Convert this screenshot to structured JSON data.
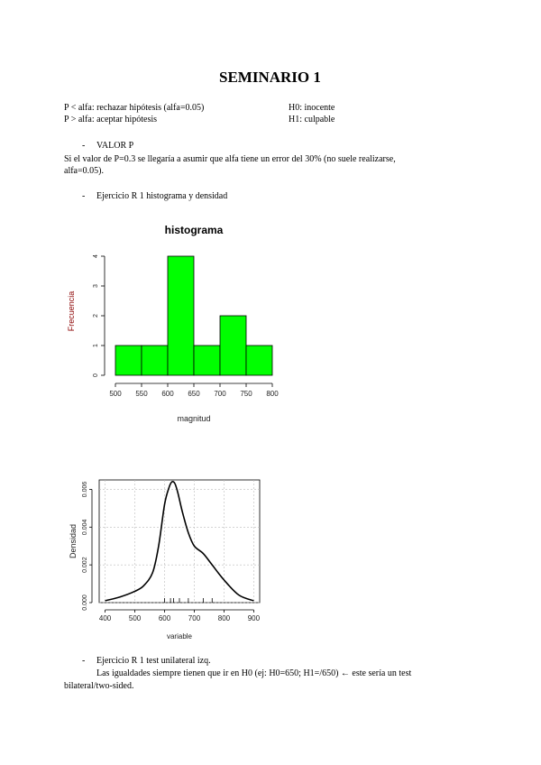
{
  "document": {
    "title": "SEMINARIO 1",
    "hyp_left_1": "P < alfa: rechazar hipótesis (alfa=0.05)",
    "hyp_right_1": "H0: inocente",
    "hyp_left_2": "P > alfa: aceptar hipótesis",
    "hyp_right_2": "H1: culpable",
    "bullet_1": "VALOR P",
    "para_1_a": "Si el valor de P=0.3 se llegaría a asumir que alfa tiene un error del 30% (no suele realizarse,",
    "para_1_b": "alfa=0.05).",
    "bullet_2": "Ejercicio R 1 histograma y densidad",
    "bullet_3": "Ejercicio R 1 test unilateral izq.",
    "para_2_a": "Las igualdades siempre tienen que ir en H0 (ej: H0=650; H1=/650) ← este sería un test",
    "para_2_b": "bilateral/two-sided.",
    "dash": "-"
  },
  "chart_data": [
    {
      "type": "bar",
      "title": "histograma",
      "xlabel": "magnitud",
      "ylabel": "Frecuencia",
      "bins": [
        [
          500,
          550
        ],
        [
          550,
          600
        ],
        [
          600,
          650
        ],
        [
          650,
          700
        ],
        [
          700,
          750
        ],
        [
          750,
          800
        ]
      ],
      "values": [
        1,
        1,
        4,
        1,
        2,
        1
      ],
      "xticks": [
        "500",
        "550",
        "600",
        "650",
        "700",
        "750",
        "800"
      ],
      "yticks": [
        "0",
        "1",
        "2",
        "3",
        "4"
      ],
      "xlim": [
        500,
        800
      ],
      "ylim": [
        0,
        4
      ],
      "bar_color": "#00ff00"
    },
    {
      "type": "line",
      "xlabel": "variable",
      "ylabel": "Densidad",
      "xticks": [
        "400",
        "500",
        "600",
        "700",
        "800",
        "900"
      ],
      "yticks": [
        "0.000",
        "0.002",
        "0.004",
        "0.006"
      ],
      "xlim": [
        380,
        920
      ],
      "ylim": [
        0,
        0.0065
      ],
      "series": [
        {
          "x": [
            400,
            450,
            500,
            530,
            560,
            580,
            600,
            615,
            625,
            635,
            645,
            660,
            680,
            700,
            730,
            760,
            800,
            850,
            900
          ],
          "y": [
            0.0001,
            0.0003,
            0.0006,
            0.0009,
            0.0016,
            0.003,
            0.0052,
            0.0061,
            0.0064,
            0.0063,
            0.0058,
            0.0048,
            0.0037,
            0.003,
            0.0026,
            0.002,
            0.0012,
            0.0004,
            0.0001
          ]
        }
      ],
      "rug": [
        600,
        620,
        630,
        650,
        680,
        730,
        760
      ]
    }
  ]
}
